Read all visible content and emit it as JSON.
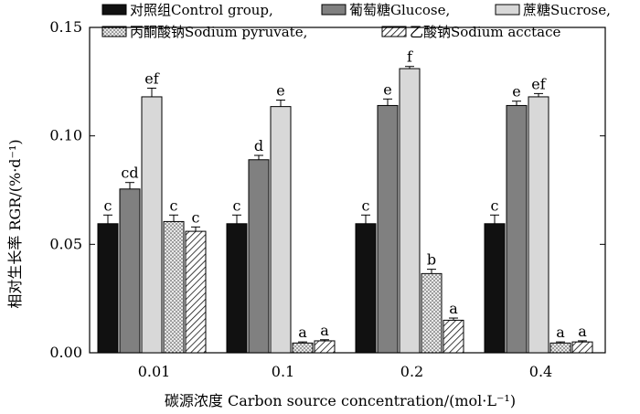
{
  "chart_data": {
    "type": "bar",
    "categories": [
      "0.01",
      "0.1",
      "0.2",
      "0.4"
    ],
    "xlabel": "碳源浓度 Carbon source concentration/(mol·L⁻¹)",
    "ylabel": "相对生长率 RGR/(%·d⁻¹)",
    "ylim": [
      0,
      0.15
    ],
    "yticks": [
      "0.00",
      "0.05",
      "0.10",
      "0.15"
    ],
    "legend_position": "top",
    "series": [
      {
        "name": "对照组Control group,",
        "fill": "#111111",
        "pattern": "solid",
        "values": [
          0.0595,
          0.0595,
          0.0595,
          0.0595
        ],
        "errors": [
          0.004,
          0.004,
          0.004,
          0.004
        ],
        "letters": [
          "c",
          "c",
          "c",
          "c"
        ]
      },
      {
        "name": "葡萄糖Glucose,",
        "fill": "#808080",
        "pattern": "solid",
        "values": [
          0.0755,
          0.089,
          0.114,
          0.114
        ],
        "errors": [
          0.003,
          0.002,
          0.003,
          0.002
        ],
        "letters": [
          "cd",
          "d",
          "e",
          "e"
        ]
      },
      {
        "name": "蔗糖Sucrose,",
        "fill": "#d8d8d8",
        "pattern": "solid",
        "values": [
          0.118,
          0.1135,
          0.131,
          0.118
        ],
        "errors": [
          0.004,
          0.003,
          0.001,
          0.0015
        ],
        "letters": [
          "ef",
          "e",
          "f",
          "ef"
        ]
      },
      {
        "name": "丙酮酸钠Sodium pyruvate,",
        "fill": "#e4e4e4",
        "pattern": "dots",
        "values": [
          0.0605,
          0.0045,
          0.0365,
          0.0045
        ],
        "errors": [
          0.003,
          0.0005,
          0.002,
          0.0005
        ],
        "letters": [
          "c",
          "a",
          "b",
          "a"
        ]
      },
      {
        "name": "乙酸钠Sodium acctace",
        "fill": "#ffffff",
        "pattern": "hatch",
        "values": [
          0.056,
          0.0055,
          0.015,
          0.005
        ],
        "errors": [
          0.002,
          0.0005,
          0.001,
          0.0005
        ],
        "letters": [
          "c",
          "a",
          "a",
          "a"
        ]
      }
    ]
  }
}
